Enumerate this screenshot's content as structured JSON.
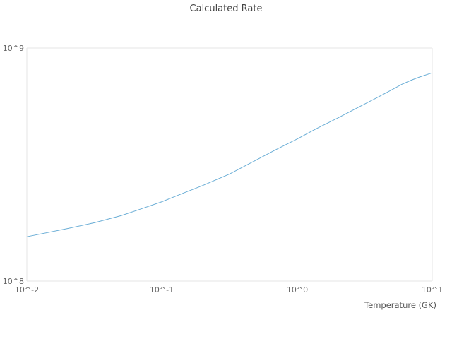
{
  "chart_data": {
    "type": "line",
    "title": "Calculated Rate",
    "xlabel": "Temperature (GK)",
    "ylabel": "",
    "x_scale": "log",
    "y_scale": "log",
    "xlim": [
      0.01,
      10
    ],
    "ylim": [
      100000000.0,
      1000000000.0
    ],
    "x_ticks": [
      0.01,
      0.1,
      1,
      10
    ],
    "x_tick_labels": [
      "10^-2",
      "10^-1",
      "10^0",
      "10^1"
    ],
    "y_ticks": [
      100000000.0,
      1000000000.0
    ],
    "y_tick_labels": [
      "10^8",
      "10^9"
    ],
    "grid": true,
    "legend": false,
    "line_color": "#6baed6",
    "grid_color": "#e6e6e6",
    "x": [
      0.01,
      0.02,
      0.0316,
      0.05,
      0.07,
      0.1,
      0.14,
      0.2,
      0.316,
      0.5,
      0.7,
      1.0,
      1.4,
      2.0,
      3.16,
      4.0,
      5.0,
      6.0,
      7.0,
      8.0,
      10.0
    ],
    "series": [
      {
        "name": "Calculated Rate",
        "values": [
          155000000.0,
          168000000.0,
          178000000.0,
          191000000.0,
          204000000.0,
          219000000.0,
          237000000.0,
          257000000.0,
          288000000.0,
          331000000.0,
          367000000.0,
          407000000.0,
          452000000.0,
          501000000.0,
          575000000.0,
          617000000.0,
          661000000.0,
          700000000.0,
          728000000.0,
          750000000.0,
          783000000.0
        ]
      }
    ]
  }
}
